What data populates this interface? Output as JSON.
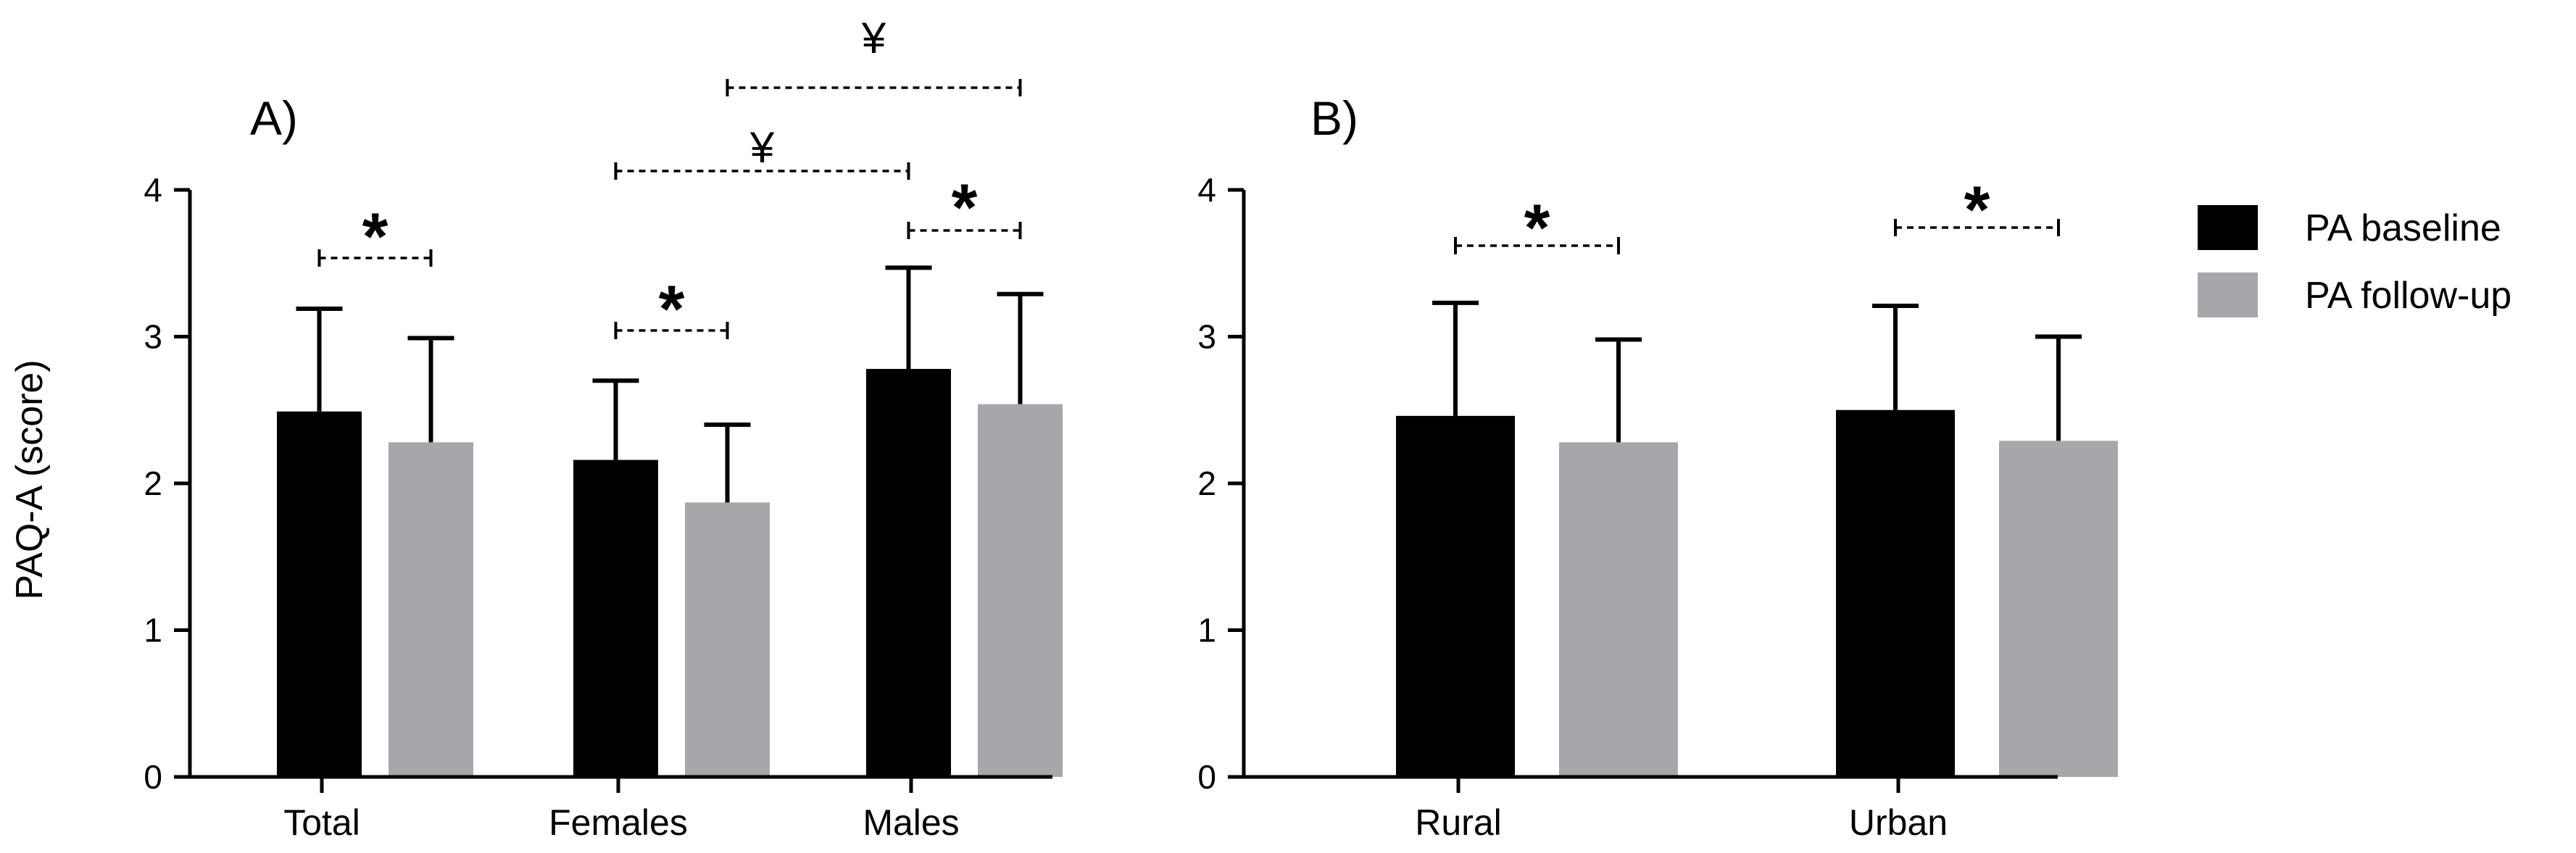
{
  "colors": {
    "baseline": "#000000",
    "followup": "#a7a6ab",
    "axis": "#000000"
  },
  "chart_data": [
    {
      "type": "bar",
      "panel_label": "A)",
      "ylabel": "PAQ-A (score)",
      "ylim": [
        0,
        4
      ],
      "yticks": [
        "0",
        "1",
        "2",
        "3",
        "4"
      ],
      "categories": [
        "Total",
        "Females",
        "Males"
      ],
      "series": [
        {
          "name": "PA baseline",
          "values": [
            2.49,
            2.16,
            2.78
          ],
          "errors": [
            0.7,
            0.54,
            0.69
          ]
        },
        {
          "name": "PA follow-up",
          "values": [
            2.28,
            1.87,
            2.54
          ],
          "errors": [
            0.71,
            0.53,
            0.75
          ]
        }
      ],
      "annotations": [
        {
          "label": "*",
          "from": [
            0,
            0
          ],
          "to": [
            0,
            1
          ]
        },
        {
          "label": "*",
          "from": [
            1,
            0
          ],
          "to": [
            1,
            1
          ]
        },
        {
          "label": "*",
          "from": [
            2,
            0
          ],
          "to": [
            2,
            1
          ]
        },
        {
          "label": "¥",
          "from": [
            1,
            0
          ],
          "to": [
            2,
            0
          ]
        },
        {
          "label": "¥",
          "from": [
            1,
            1
          ],
          "to": [
            2,
            1
          ]
        }
      ]
    },
    {
      "type": "bar",
      "panel_label": "B)",
      "ylim": [
        0,
        4
      ],
      "yticks": [
        "0",
        "1",
        "2",
        "3",
        "4"
      ],
      "categories": [
        "Rural",
        "Urban"
      ],
      "series": [
        {
          "name": "PA baseline",
          "values": [
            2.46,
            2.5
          ],
          "errors": [
            0.77,
            0.71
          ]
        },
        {
          "name": "PA follow-up",
          "values": [
            2.28,
            2.29
          ],
          "errors": [
            0.7,
            0.71
          ]
        }
      ],
      "annotations": [
        {
          "label": "*",
          "from": [
            0,
            0
          ],
          "to": [
            0,
            1
          ]
        },
        {
          "label": "*",
          "from": [
            1,
            0
          ],
          "to": [
            1,
            1
          ]
        }
      ]
    }
  ],
  "legend": {
    "items": [
      "PA baseline",
      "PA follow-up"
    ]
  }
}
